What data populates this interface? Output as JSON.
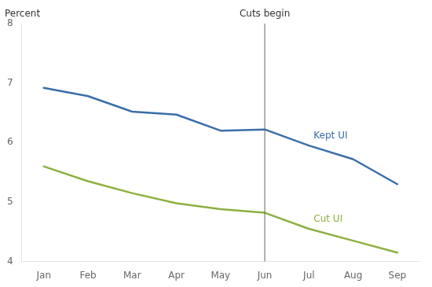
{
  "chart_data": {
    "type": "line",
    "categories": [
      "Jan",
      "Feb",
      "Mar",
      "Apr",
      "May",
      "Jun",
      "Jul",
      "Aug",
      "Sep"
    ],
    "series": [
      {
        "name": "Kept UI",
        "color": "#3A6EA8",
        "values": [
          6.92,
          6.78,
          6.52,
          6.47,
          6.2,
          6.22,
          5.95,
          5.72,
          5.3
        ]
      },
      {
        "name": "Cut UI",
        "color": "#8DB040",
        "values": [
          5.6,
          5.35,
          5.15,
          4.98,
          4.88,
          4.82,
          4.55,
          4.35,
          4.15
        ]
      }
    ],
    "ylabel": "Percent",
    "annotations": [
      {
        "text": "Cuts begin",
        "x": "Jun"
      }
    ],
    "ylim": [
      4,
      8
    ],
    "yticks": [
      4,
      5,
      6,
      7,
      8
    ],
    "grid": false
  }
}
